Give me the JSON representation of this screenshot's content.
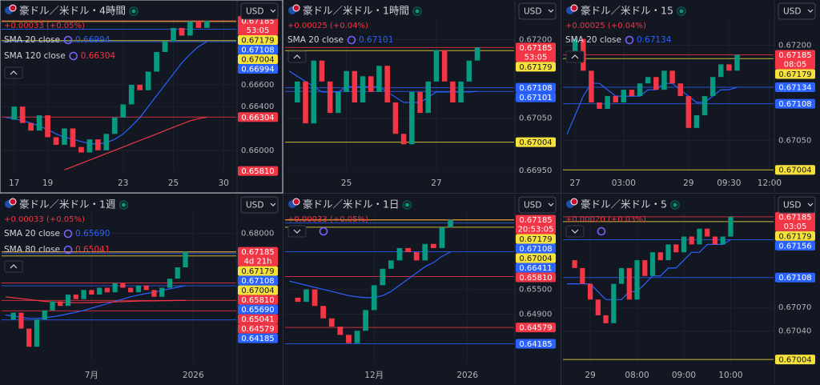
{
  "chart_data": [
    {
      "type": "candlestick",
      "title": "豪ドル／米ドル・4時間",
      "currency": "USD",
      "change": "+0.00033 (+0.05%)",
      "countdown": "53:05",
      "up_color": "#089981",
      "down_color": "#f23645",
      "categories": [
        null,
        "17",
        null,
        null,
        null,
        "19",
        null,
        null,
        null,
        null,
        null,
        null,
        null,
        null,
        "23",
        null,
        null,
        null,
        null,
        null,
        "25",
        null,
        null,
        null,
        null,
        null,
        "30",
        null
      ],
      "values": [
        0.6628,
        0.664,
        0.6625,
        0.6618,
        0.6632,
        0.6612,
        0.6605,
        0.662,
        0.6603,
        0.6598,
        0.661,
        0.66,
        0.6615,
        0.663,
        0.6642,
        0.666,
        0.6655,
        0.6672,
        0.669,
        0.67,
        0.6712,
        0.6705,
        0.6718,
        0.6712,
        0.67185,
        null,
        null,
        null
      ],
      "indicators": [
        {
          "name": "SMA 20 close",
          "last": 0.66994,
          "color": "#2962ff",
          "values": [
            0.663,
            0.6629,
            0.6627,
            0.6625,
            0.6622,
            0.6619,
            0.6615,
            0.6612,
            0.661,
            0.6608,
            0.6606,
            0.6606,
            0.6607,
            0.661,
            0.6615,
            0.6622,
            0.663,
            0.664,
            0.665,
            0.666,
            0.667,
            0.668,
            0.6688,
            0.6695,
            0.66994,
            null,
            null,
            null
          ]
        },
        {
          "name": "SMA 120 close",
          "last": 0.66304,
          "color": "#f23645",
          "values": [
            null,
            null,
            null,
            null,
            null,
            null,
            null,
            0.6582,
            0.6585,
            0.6588,
            0.6591,
            0.6594,
            0.6597,
            0.66,
            0.6603,
            0.6606,
            0.6609,
            0.6612,
            0.6615,
            0.6618,
            0.6621,
            0.6624,
            0.6627,
            0.6629,
            0.66304,
            null,
            null,
            null
          ]
        }
      ],
      "ylim": [
        0.65815,
        0.672
      ],
      "yticks": [
        {
          "value": 0.66,
          "label": "0.66000"
        },
        {
          "value": 0.664,
          "label": "0.66400"
        },
        {
          "value": 0.666,
          "label": "0.66600"
        }
      ],
      "price_labels": [
        {
          "price": 0.67185,
          "color": "#f23645"
        },
        {
          "price": 0.67179,
          "color": "#f5e13c"
        },
        {
          "price": 0.67108,
          "color": "#2962ff"
        },
        {
          "price": 0.67004,
          "color": "#f5e13c"
        },
        {
          "price": 0.66994,
          "color": "#2962ff"
        },
        {
          "price": 0.66304,
          "color": "#f23645"
        },
        {
          "price": {
            "value": 0.6581,
            "label": "0.65810"
          },
          "color": "#f23645"
        }
      ]
    },
    {
      "type": "candlestick",
      "title": "豪ドル／米ドル・1時間",
      "currency": "USD",
      "change": "+0.00025 (+0.04%)",
      "countdown": "53:05",
      "up_color": "#089981",
      "down_color": "#f23645",
      "categories": [
        null,
        null,
        null,
        null,
        null,
        null,
        null,
        "25",
        null,
        null,
        null,
        null,
        null,
        null,
        null,
        null,
        null,
        null,
        "27",
        null,
        null,
        null,
        null,
        null,
        null,
        null,
        null,
        null
      ],
      "values": [
        0.6708,
        0.6712,
        0.6704,
        0.6716,
        0.6712,
        0.6706,
        0.671,
        0.6714,
        0.6708,
        0.6713,
        0.671,
        0.6715,
        0.6708,
        0.6702,
        0.67,
        0.671,
        0.6706,
        0.6712,
        0.6718,
        0.6712,
        0.6708,
        0.6712,
        0.6716,
        0.67185,
        null,
        null,
        null,
        null
      ],
      "indicators": [
        {
          "name": "SMA 20 close",
          "last": 0.67101,
          "color": "#2962ff",
          "values": [
            0.6714,
            0.6713,
            0.6712,
            0.6711,
            0.671,
            0.671,
            0.671,
            0.6711,
            0.6711,
            0.6711,
            0.6711,
            0.6711,
            0.671,
            0.6709,
            0.6708,
            0.6708,
            0.6708,
            0.6709,
            0.671,
            0.671,
            0.671,
            0.671,
            0.671,
            0.67101,
            null,
            null,
            null,
            null
          ]
        }
      ],
      "ylim": [
        0.6695,
        0.67239
      ],
      "yticks": [
        {
          "value": 0.672,
          "label": "0.67200"
        },
        {
          "value": 0.6705,
          "label": "0.67050"
        },
        {
          "value": 0.6695,
          "label": "0.66950"
        }
      ],
      "price_labels": [
        {
          "price": 0.67185,
          "color": "#f23645"
        },
        {
          "price": 0.67179,
          "color": "#f5e13c"
        },
        {
          "price": 0.67108,
          "color": "#2962ff"
        },
        {
          "price": 0.67101,
          "color": "#2962ff"
        },
        {
          "price": 0.67004,
          "color": "#f5e13c"
        }
      ]
    },
    {
      "type": "candlestick",
      "title": "豪ドル／米ドル・15",
      "currency": "USD",
      "change": "+0.00025 (+0.04%)",
      "countdown": "08:05",
      "up_color": "#089981",
      "down_color": "#f23645",
      "categories": [
        null,
        "27",
        null,
        null,
        null,
        null,
        null,
        "03:00",
        null,
        null,
        null,
        null,
        null,
        null,
        null,
        "29",
        null,
        null,
        null,
        null,
        "09:30",
        null,
        null,
        null,
        null,
        "12:00"
      ],
      "values": [
        0.6718,
        0.6721,
        0.6716,
        0.6711,
        0.671,
        0.6712,
        0.6711,
        0.6713,
        0.6712,
        0.6714,
        0.6715,
        0.6713,
        0.6716,
        0.6714,
        0.6712,
        0.6707,
        0.6709,
        0.6712,
        0.6715,
        0.6717,
        0.6716,
        0.67185,
        null,
        null,
        null,
        null
      ],
      "indicators": [
        {
          "name": "SMA 20 close",
          "last": 0.67134,
          "color": "#2962ff",
          "values": [
            0.6706,
            0.6709,
            0.6712,
            0.6714,
            0.6714,
            0.6713,
            0.6712,
            0.6712,
            0.6712,
            0.6712,
            0.6713,
            0.6713,
            0.6714,
            0.6714,
            0.6713,
            0.6712,
            0.6711,
            0.6711,
            0.6712,
            0.6713,
            0.6713,
            0.67134,
            null,
            null,
            null,
            null
          ]
        }
      ],
      "ylim": [
        0.67003,
        0.67241
      ],
      "yticks": [
        {
          "value": 0.672,
          "label": "0.67200"
        },
        {
          "value": 0.6705,
          "label": "0.67050"
        }
      ],
      "price_labels": [
        {
          "price": 0.67185,
          "color": "#f23645"
        },
        {
          "price": 0.67179,
          "color": "#f5e13c"
        },
        {
          "price": 0.67134,
          "color": "#2962ff"
        },
        {
          "price": 0.67108,
          "color": "#2962ff"
        },
        {
          "price": 0.67004,
          "color": "#f5e13c"
        }
      ]
    },
    {
      "type": "candlestick",
      "title": "豪ドル／米ドル・1週",
      "currency": "USD",
      "change": "+0.00033 (+0.05%)",
      "countdown": "4d 21h",
      "up_color": "#089981",
      "down_color": "#f23645",
      "categories": [
        null,
        null,
        null,
        null,
        null,
        null,
        null,
        null,
        null,
        null,
        null,
        "7月",
        null,
        null,
        null,
        null,
        null,
        null,
        null,
        null,
        null,
        null,
        null,
        null,
        "2026",
        null,
        null,
        null,
        null,
        null
      ],
      "values": [
        0.642,
        0.645,
        0.638,
        0.63,
        0.642,
        0.646,
        0.65,
        0.648,
        0.653,
        0.651,
        0.655,
        0.653,
        0.656,
        0.654,
        0.658,
        0.656,
        0.654,
        0.657,
        0.655,
        0.652,
        0.656,
        0.66,
        0.665,
        0.67185,
        null,
        null,
        null,
        null,
        null,
        null
      ],
      "indicators": [
        {
          "name": "SMA 20 close",
          "last": {
            "value": 0.6569,
            "label": "0.65690"
          },
          "color": "#2962ff",
          "values": [
            0.644,
            0.6435,
            0.643,
            0.6425,
            0.6425,
            0.6428,
            0.6432,
            0.6438,
            0.6445,
            0.6452,
            0.646,
            0.647,
            0.648,
            0.649,
            0.65,
            0.651,
            0.652,
            0.6528,
            0.6535,
            0.654,
            0.6548,
            0.6555,
            0.6562,
            0.6569,
            null,
            null,
            null,
            null,
            null,
            null
          ]
        },
        {
          "name": "SMA 80 close",
          "last": 0.65041,
          "color": "#f23645",
          "values": [
            0.652,
            0.6516,
            0.6512,
            0.6508,
            0.6504,
            0.65,
            0.6498,
            0.6496,
            0.6495,
            0.6494,
            0.6494,
            0.6495,
            0.6496,
            0.6497,
            0.6498,
            0.6499,
            0.65,
            0.6501,
            0.6502,
            0.6502,
            0.6503,
            0.6503,
            0.6504,
            0.65041,
            null,
            null,
            null,
            null,
            null,
            null
          ]
        }
      ],
      "ylim": [
        0.623,
        0.689
      ],
      "yticks": [
        {
          "value": 0.68,
          "label": "0.68000"
        }
      ],
      "price_labels": [
        {
          "price": 0.67185,
          "color": "#f23645"
        },
        {
          "price": 0.67179,
          "color": "#f5e13c"
        },
        {
          "price": 0.67108,
          "color": "#2962ff"
        },
        {
          "price": 0.67004,
          "color": "#f5e13c"
        },
        {
          "price": {
            "value": 0.6581,
            "label": "0.65810"
          },
          "color": "#f23645"
        },
        {
          "price": {
            "value": 0.6569,
            "label": "0.65690"
          },
          "color": "#2962ff"
        },
        {
          "price": 0.65041,
          "color": "#f23645"
        },
        {
          "price": 0.64579,
          "color": "#f23645"
        },
        {
          "price": 0.64185,
          "color": "#2962ff"
        }
      ]
    },
    {
      "type": "candlestick",
      "title": "豪ドル／米ドル・1日",
      "currency": "USD",
      "change": "+0.00033 (+0.05%)",
      "countdown": "20:53:05",
      "up_color": "#089981",
      "down_color": "#f23645",
      "categories": [
        null,
        null,
        null,
        null,
        null,
        null,
        null,
        null,
        null,
        null,
        "12月",
        null,
        null,
        null,
        null,
        null,
        null,
        null,
        null,
        null,
        null,
        "2026",
        null,
        null,
        null,
        null,
        null
      ],
      "values": [
        0.653,
        0.652,
        0.655,
        0.651,
        0.648,
        0.646,
        0.644,
        0.642,
        0.645,
        0.65,
        0.656,
        0.66,
        0.662,
        0.665,
        0.664,
        0.662,
        0.666,
        0.665,
        0.67,
        0.67185,
        null,
        null,
        null,
        null,
        null,
        null,
        null
      ],
      "indicators": [
        {
          "color": "#2962ff",
          "values": [
            0.657,
            0.6565,
            0.656,
            0.6555,
            0.655,
            0.6545,
            0.654,
            0.6535,
            0.6532,
            0.653,
            0.653,
            0.6535,
            0.6545,
            0.656,
            0.6575,
            0.659,
            0.6605,
            0.6615,
            0.663,
            0.6641,
            null,
            null,
            null,
            null,
            null,
            null,
            null
          ]
        }
      ],
      "ylim": [
        0.6373,
        0.6735
      ],
      "yticks": [
        {
          "value": 0.655,
          "label": "0.65500"
        },
        {
          "value": 0.649,
          "label": "0.64900"
        }
      ],
      "price_labels": [
        {
          "price": 0.67185,
          "color": "#f23645"
        },
        {
          "price": 0.67179,
          "color": "#f5e13c"
        },
        {
          "price": 0.67108,
          "color": "#2962ff"
        },
        {
          "price": 0.67004,
          "color": "#f5e13c"
        },
        {
          "price": 0.66411,
          "color": "#2962ff"
        },
        {
          "price": {
            "value": 0.6581,
            "label": "0.65810"
          },
          "color": "#f23645"
        },
        {
          "price": 0.64579,
          "color": "#f23645"
        },
        {
          "price": 0.64185,
          "color": "#2962ff"
        }
      ]
    },
    {
      "type": "candlestick",
      "title": "豪ドル／米ドル・5",
      "currency": "USD",
      "change": "+0.00020 (+0.03%)",
      "countdown": "03:05",
      "up_color": "#089981",
      "down_color": "#f23645",
      "categories": [
        null,
        null,
        null,
        "29",
        null,
        null,
        null,
        null,
        null,
        "08:00",
        null,
        null,
        null,
        null,
        null,
        "09:00",
        null,
        null,
        null,
        null,
        null,
        "10:00",
        null,
        null,
        null,
        null,
        null
      ],
      "values": [
        0.6713,
        0.6712,
        0.671,
        0.6708,
        0.6706,
        0.6705,
        0.671,
        0.6712,
        0.6708,
        0.6713,
        0.6711,
        0.6714,
        0.6713,
        0.6715,
        0.6714,
        0.6716,
        0.6715,
        0.6717,
        0.6716,
        0.6715,
        0.6716,
        0.67185,
        null,
        null,
        null,
        null,
        null
      ],
      "indicators": [
        {
          "color": "#2962ff",
          "values": [
            0.671,
            0.671,
            0.671,
            0.671,
            0.6709,
            0.6708,
            0.6708,
            0.6708,
            0.6709,
            0.6709,
            0.671,
            0.6711,
            0.6711,
            0.6712,
            0.6712,
            0.6713,
            0.6714,
            0.6714,
            0.6715,
            0.6715,
            0.6715,
            0.67156,
            null,
            null,
            null,
            null,
            null
          ]
        }
      ],
      "ylim": [
        0.67,
        0.6719
      ],
      "yticks": [
        {
          "value": 0.6707,
          "label": "0.67070"
        },
        {
          "value": 0.6704,
          "label": "0.67040"
        }
      ],
      "price_labels": [
        {
          "price": 0.67185,
          "color": "#f23645"
        },
        {
          "price": 0.67179,
          "color": "#f5e13c"
        },
        {
          "price": 0.67156,
          "color": "#2962ff"
        },
        {
          "price": 0.67108,
          "color": "#2962ff"
        },
        {
          "price": 0.67004,
          "color": "#f5e13c"
        }
      ]
    }
  ]
}
